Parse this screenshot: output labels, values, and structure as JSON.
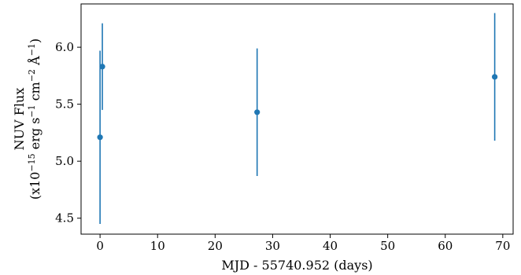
{
  "chart_data": {
    "type": "scatter",
    "title": "",
    "xlabel": "MJD - 55740.952 (days)",
    "ylabel_line1": "NUV Flux",
    "ylabel_line2_prefix": "(x10",
    "ylabel_line2_exp1": "−15",
    "ylabel_line2_mid1": " erg s",
    "ylabel_line2_exp2": "−1",
    "ylabel_line2_mid2": " cm",
    "ylabel_line2_exp3": "−2",
    "ylabel_line2_mid3": " Å",
    "ylabel_line2_exp4": "−1",
    "ylabel_line2_suffix": ")",
    "xlim": [
      -3.3,
      71.8
    ],
    "ylim": [
      4.36,
      6.38
    ],
    "xticks": [
      0,
      10,
      20,
      30,
      40,
      50,
      60,
      70
    ],
    "xtick_labels": [
      "0",
      "10",
      "20",
      "30",
      "40",
      "50",
      "60",
      "70"
    ],
    "yticks": [
      4.5,
      5.0,
      5.5,
      6.0
    ],
    "ytick_labels": [
      "4.5",
      "5.0",
      "5.5",
      "6.0"
    ],
    "grid": false,
    "color": "#1f77b4",
    "points": [
      {
        "x": 0.0,
        "y": 5.21,
        "yerr": 0.76
      },
      {
        "x": 0.4,
        "y": 5.83,
        "yerr": 0.38
      },
      {
        "x": 27.3,
        "y": 5.43,
        "yerr": 0.56
      },
      {
        "x": 68.6,
        "y": 5.74,
        "yerr": 0.56
      }
    ]
  }
}
